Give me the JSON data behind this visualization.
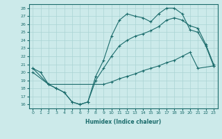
{
  "xlabel": "Humidex (Indice chaleur)",
  "bg_color": "#cceaea",
  "line_color": "#1a6b6b",
  "grid_color": "#aad4d4",
  "xlim": [
    -0.5,
    23.5
  ],
  "ylim": [
    15.5,
    28.5
  ],
  "xticks": [
    0,
    1,
    2,
    3,
    4,
    5,
    6,
    7,
    8,
    9,
    10,
    11,
    12,
    13,
    14,
    15,
    16,
    17,
    18,
    19,
    20,
    21,
    22,
    23
  ],
  "yticks": [
    16,
    17,
    18,
    19,
    20,
    21,
    22,
    23,
    24,
    25,
    26,
    27,
    28
  ],
  "line1_x": [
    0,
    1,
    2,
    3,
    4,
    5,
    6,
    7,
    8,
    9,
    10,
    11,
    12,
    13,
    14,
    15,
    16,
    17,
    18,
    19,
    20,
    21,
    22,
    23
  ],
  "line1_y": [
    20.5,
    20.0,
    18.5,
    18.0,
    17.5,
    16.3,
    16.0,
    16.3,
    19.5,
    21.5,
    24.5,
    26.5,
    27.3,
    27.0,
    26.8,
    26.3,
    27.3,
    28.0,
    28.0,
    27.3,
    25.3,
    25.0,
    23.3,
    20.8
  ],
  "line2_x": [
    0,
    2,
    3,
    4,
    5,
    6,
    7,
    8,
    9,
    10,
    11,
    12,
    13,
    14,
    15,
    16,
    17,
    18,
    19,
    20,
    21,
    22,
    23
  ],
  "line2_y": [
    20.5,
    18.5,
    18.0,
    17.5,
    16.3,
    16.0,
    16.3,
    19.0,
    20.5,
    22.0,
    23.3,
    24.0,
    24.5,
    24.8,
    25.2,
    25.7,
    26.5,
    26.8,
    26.5,
    25.8,
    25.5,
    23.5,
    21.0
  ],
  "line3_x": [
    0,
    2,
    9,
    10,
    11,
    12,
    13,
    14,
    15,
    16,
    17,
    18,
    19,
    20,
    21,
    23
  ],
  "line3_y": [
    20.0,
    18.5,
    18.5,
    18.8,
    19.2,
    19.5,
    19.8,
    20.2,
    20.5,
    20.8,
    21.2,
    21.5,
    22.0,
    22.5,
    20.5,
    20.8
  ]
}
